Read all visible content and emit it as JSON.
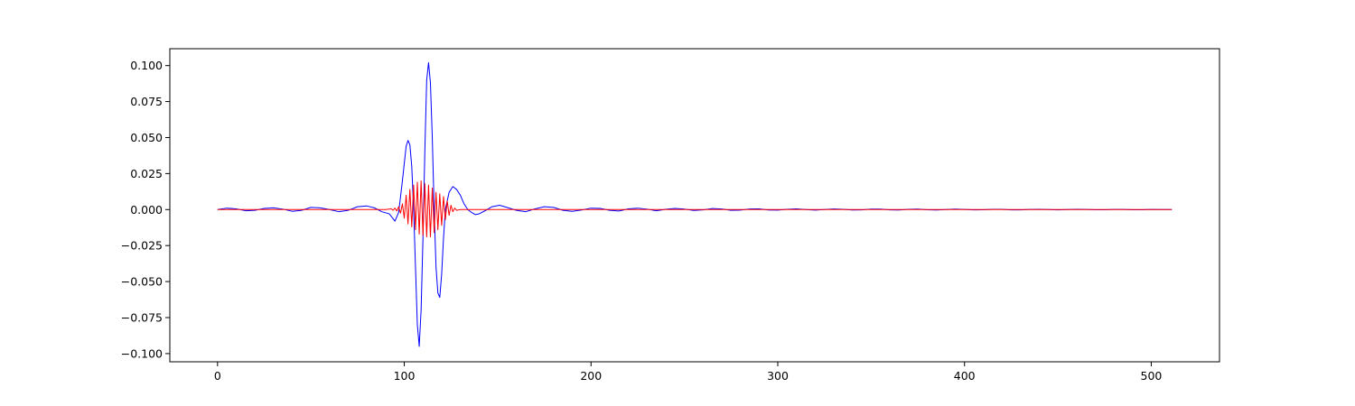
{
  "chart_data": {
    "type": "line",
    "title": "",
    "xlabel": "",
    "ylabel": "",
    "xlim": [
      -25.55,
      536.55
    ],
    "ylim": [
      -0.1057,
      0.1117
    ],
    "grid": false,
    "legend": "none",
    "x_ticks": [
      0,
      100,
      200,
      300,
      400,
      500
    ],
    "x_tick_labels": [
      "0",
      "100",
      "200",
      "300",
      "400",
      "500"
    ],
    "y_ticks": [
      -0.1,
      -0.075,
      -0.05,
      -0.025,
      0.0,
      0.025,
      0.05,
      0.075,
      0.1
    ],
    "y_tick_labels": [
      "−0.100",
      "−0.075",
      "−0.050",
      "−0.025",
      "0.000",
      "0.025",
      "0.050",
      "0.075",
      "0.100"
    ],
    "series": [
      {
        "color": "#0000ff",
        "points": [
          [
            0,
            0.0
          ],
          [
            5,
            0.001
          ],
          [
            10,
            0.0005
          ],
          [
            15,
            -0.0008
          ],
          [
            20,
            -0.0005
          ],
          [
            25,
            0.0008
          ],
          [
            30,
            0.0012
          ],
          [
            35,
            0.0003
          ],
          [
            40,
            -0.0012
          ],
          [
            45,
            -0.0005
          ],
          [
            50,
            0.0015
          ],
          [
            55,
            0.0012
          ],
          [
            60,
            0.0
          ],
          [
            65,
            -0.0015
          ],
          [
            70,
            -0.0005
          ],
          [
            75,
            0.002
          ],
          [
            80,
            0.0025
          ],
          [
            84,
            0.0012
          ],
          [
            88,
            -0.0015
          ],
          [
            92,
            -0.003
          ],
          [
            95,
            -0.008
          ],
          [
            97,
            -0.002
          ],
          [
            99,
            0.02
          ],
          [
            101,
            0.044
          ],
          [
            102,
            0.048
          ],
          [
            103,
            0.045
          ],
          [
            104,
            0.03
          ],
          [
            105,
            0.0
          ],
          [
            106,
            -0.04
          ],
          [
            107,
            -0.08
          ],
          [
            108,
            -0.095
          ],
          [
            109,
            -0.07
          ],
          [
            110,
            -0.02
          ],
          [
            111,
            0.04
          ],
          [
            112,
            0.09
          ],
          [
            113,
            0.102
          ],
          [
            114,
            0.088
          ],
          [
            115,
            0.05
          ],
          [
            116,
            0.0
          ],
          [
            117,
            -0.04
          ],
          [
            118,
            -0.058
          ],
          [
            119,
            -0.061
          ],
          [
            120,
            -0.045
          ],
          [
            121,
            -0.02
          ],
          [
            122,
            0.0
          ],
          [
            124,
            0.012
          ],
          [
            126,
            0.016
          ],
          [
            128,
            0.014
          ],
          [
            130,
            0.01
          ],
          [
            132,
            0.004
          ],
          [
            134,
            0.0
          ],
          [
            136,
            -0.002
          ],
          [
            138,
            -0.0035
          ],
          [
            140,
            -0.003
          ],
          [
            143,
            -0.001
          ],
          [
            147,
            0.002
          ],
          [
            151,
            0.003
          ],
          [
            155,
            0.0015
          ],
          [
            160,
            -0.0005
          ],
          [
            165,
            -0.0015
          ],
          [
            170,
            0.0005
          ],
          [
            175,
            0.002
          ],
          [
            180,
            0.0015
          ],
          [
            185,
            -0.0005
          ],
          [
            190,
            -0.0012
          ],
          [
            195,
            -0.0003
          ],
          [
            200,
            0.001
          ],
          [
            205,
            0.0008
          ],
          [
            210,
            -0.0005
          ],
          [
            215,
            -0.001
          ],
          [
            220,
            0.0005
          ],
          [
            225,
            0.001
          ],
          [
            230,
            0.0003
          ],
          [
            235,
            -0.0008
          ],
          [
            240,
            0.0002
          ],
          [
            245,
            0.0008
          ],
          [
            250,
            0.0003
          ],
          [
            255,
            -0.0006
          ],
          [
            260,
            -0.0002
          ],
          [
            265,
            0.0007
          ],
          [
            270,
            0.0004
          ],
          [
            275,
            -0.0005
          ],
          [
            280,
            -0.0004
          ],
          [
            285,
            0.0004
          ],
          [
            290,
            0.0005
          ],
          [
            295,
            -0.0003
          ],
          [
            300,
            -0.0004
          ],
          [
            305,
            0.0002
          ],
          [
            310,
            0.0005
          ],
          [
            315,
            0.0
          ],
          [
            320,
            -0.0004
          ],
          [
            325,
            0.0
          ],
          [
            330,
            0.0004
          ],
          [
            335,
            0.0002
          ],
          [
            340,
            -0.0003
          ],
          [
            345,
            -0.0002
          ],
          [
            350,
            0.0003
          ],
          [
            355,
            0.0003
          ],
          [
            360,
            -0.0002
          ],
          [
            365,
            -0.0003
          ],
          [
            370,
            0.0002
          ],
          [
            375,
            0.0003
          ],
          [
            380,
            -0.0001
          ],
          [
            385,
            -0.0003
          ],
          [
            390,
            0.0
          ],
          [
            395,
            0.0003
          ],
          [
            400,
            0.0001
          ],
          [
            405,
            -0.0002
          ],
          [
            410,
            -0.0001
          ],
          [
            415,
            0.0002
          ],
          [
            420,
            0.0002
          ],
          [
            425,
            -0.0002
          ],
          [
            430,
            -0.0002
          ],
          [
            435,
            0.0001
          ],
          [
            440,
            0.0002
          ],
          [
            445,
            0.0
          ],
          [
            450,
            -0.0002
          ],
          [
            455,
            0.0
          ],
          [
            460,
            0.0002
          ],
          [
            465,
            0.0001
          ],
          [
            470,
            -0.0001
          ],
          [
            475,
            -0.0001
          ],
          [
            480,
            0.0001
          ],
          [
            485,
            0.0001
          ],
          [
            490,
            -0.0001
          ],
          [
            495,
            -0.0001
          ],
          [
            500,
            0.0001
          ],
          [
            505,
            0.0
          ],
          [
            511,
            0.0
          ]
        ]
      },
      {
        "color": "#ff0000",
        "points": [
          [
            0,
            0.0
          ],
          [
            90,
            0.0
          ],
          [
            93,
            0.0005
          ],
          [
            94,
            -0.0005
          ],
          [
            95,
            0.001
          ],
          [
            96,
            -0.001
          ],
          [
            97,
            0.002
          ],
          [
            98,
            -0.0025
          ],
          [
            99,
            0.004
          ],
          [
            100,
            -0.006
          ],
          [
            101,
            0.01
          ],
          [
            102,
            -0.01
          ],
          [
            103,
            0.014
          ],
          [
            104,
            -0.012
          ],
          [
            105,
            0.017
          ],
          [
            106,
            -0.014
          ],
          [
            107,
            0.019
          ],
          [
            108,
            -0.017
          ],
          [
            109,
            0.02
          ],
          [
            110,
            -0.018
          ],
          [
            111,
            0.018
          ],
          [
            112,
            -0.019
          ],
          [
            113,
            0.017
          ],
          [
            114,
            -0.019
          ],
          [
            115,
            0.015
          ],
          [
            116,
            -0.016
          ],
          [
            117,
            0.012
          ],
          [
            118,
            -0.014
          ],
          [
            119,
            0.011
          ],
          [
            120,
            -0.011
          ],
          [
            121,
            0.009
          ],
          [
            122,
            -0.007
          ],
          [
            123,
            0.006
          ],
          [
            124,
            -0.004
          ],
          [
            125,
            0.003
          ],
          [
            126,
            -0.0015
          ],
          [
            127,
            0.001
          ],
          [
            128,
            -0.0005
          ],
          [
            130,
            0.0
          ],
          [
            200,
            0.0
          ],
          [
            300,
            0.0
          ],
          [
            400,
            0.0
          ],
          [
            511,
            0.0
          ]
        ]
      }
    ]
  }
}
